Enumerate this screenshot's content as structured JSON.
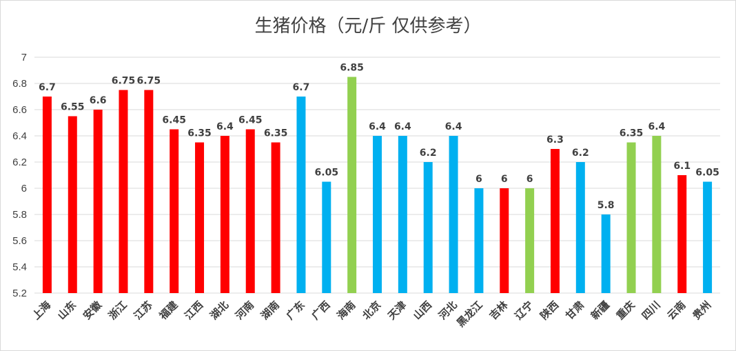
{
  "chart_data": {
    "type": "bar",
    "title": "生猪价格（元/斤 仅供参考）",
    "xlabel": "",
    "ylabel": "",
    "ylim": [
      5.2,
      7
    ],
    "yticks": [
      "5.2",
      "5.4",
      "5.6",
      "5.8",
      "6",
      "6.2",
      "6.4",
      "6.6",
      "6.8",
      "7"
    ],
    "grid": true,
    "categories": [
      "上海",
      "山东",
      "安徽",
      "浙江",
      "江苏",
      "福建",
      "江西",
      "湖北",
      "河南",
      "湖南",
      "广东",
      "广西",
      "海南",
      "北京",
      "天津",
      "山西",
      "河北",
      "黑龙江",
      "吉林",
      "辽宁",
      "陕西",
      "甘肃",
      "新疆",
      "重庆",
      "四川",
      "云南",
      "贵州"
    ],
    "values": [
      6.7,
      6.55,
      6.6,
      6.75,
      6.75,
      6.45,
      6.35,
      6.4,
      6.45,
      6.35,
      6.7,
      6.05,
      6.85,
      6.4,
      6.4,
      6.2,
      6.4,
      6,
      6,
      6,
      6.3,
      6.2,
      5.8,
      6.35,
      6.4,
      6.1,
      6.05
    ],
    "value_labels": [
      "6.7",
      "6.55",
      "6.6",
      "6.75",
      "6.75",
      "6.45",
      "6.35",
      "6.4",
      "6.45",
      "6.35",
      "6.7",
      "6.05",
      "6.85",
      "6.4",
      "6.4",
      "6.2",
      "6.4",
      "6",
      "6",
      "6",
      "6.3",
      "6.2",
      "5.8",
      "6.35",
      "6.4",
      "6.1",
      "6.05"
    ],
    "color_groups": [
      "red",
      "red",
      "red",
      "red",
      "red",
      "red",
      "red",
      "red",
      "red",
      "red",
      "blue",
      "blue",
      "green",
      "blue",
      "blue",
      "blue",
      "blue",
      "blue",
      "red",
      "green",
      "red",
      "blue",
      "blue",
      "green",
      "green",
      "red",
      "blue"
    ],
    "colors": {
      "red": "#ff0000",
      "blue": "#00b0f0",
      "green": "#92d050"
    }
  }
}
